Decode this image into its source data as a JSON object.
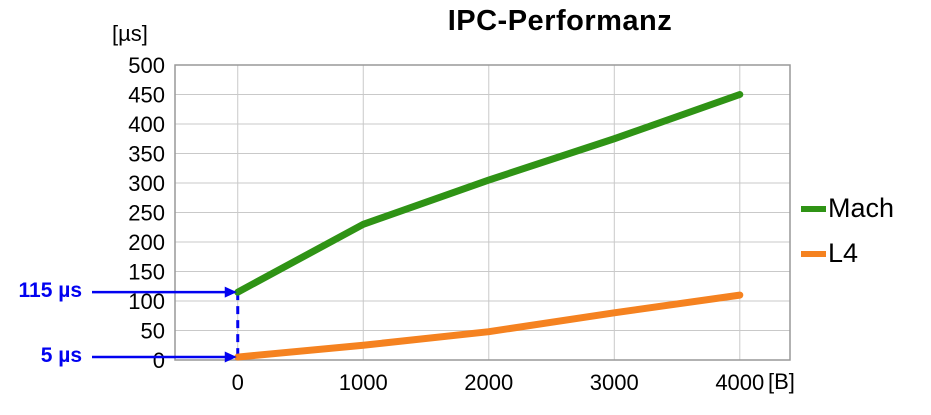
{
  "chart_data": {
    "type": "line",
    "title": "IPC-Performanz",
    "ylabel": "[µs]",
    "xlabel": "[B]",
    "x": [
      0,
      1000,
      2000,
      3000,
      4000
    ],
    "x_ticks": [
      0,
      1000,
      2000,
      3000,
      4000
    ],
    "series": [
      {
        "name": "Mach",
        "color": "#2f9315",
        "values": [
          115,
          230,
          305,
          375,
          450
        ]
      },
      {
        "name": "L4",
        "color": "#f58220",
        "values": [
          5,
          25,
          48,
          80,
          110
        ]
      }
    ],
    "xlim": [
      -500,
      4400
    ],
    "ylim": [
      0,
      500
    ],
    "y_tick_step": 50,
    "grid": true,
    "legend_position": "right",
    "annotations": [
      {
        "text": "115 µs",
        "y": 115
      },
      {
        "text": "5 µs",
        "y": 5
      }
    ],
    "annotation_color": "#0202f0",
    "grid_color": "#c9c9c9",
    "border_color": "#999999",
    "text_color": "#000000"
  }
}
